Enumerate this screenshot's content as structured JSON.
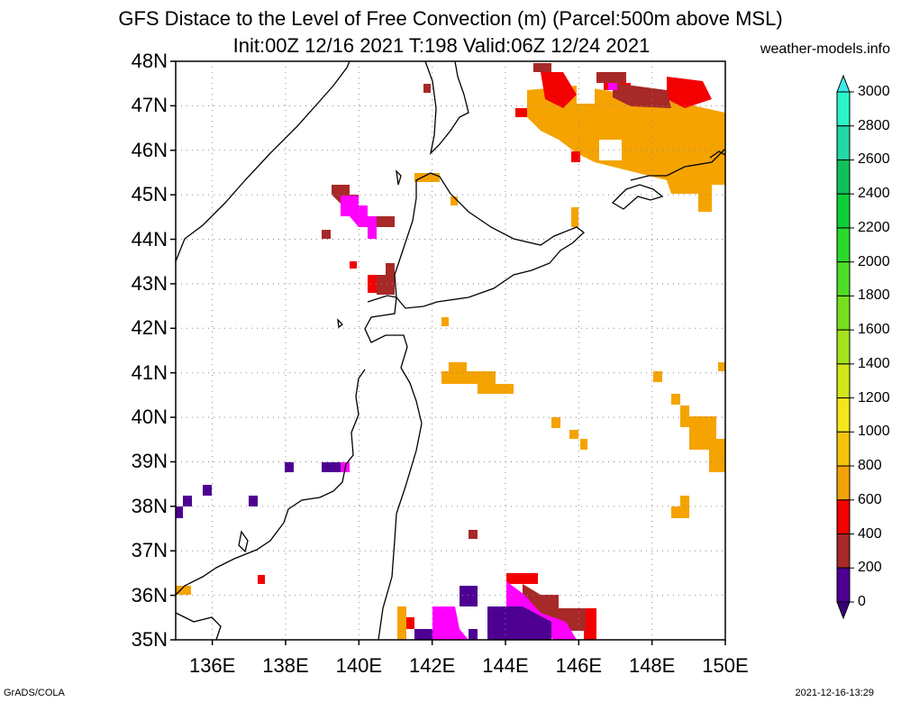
{
  "title_line1": "GFS Distace to the Level of Free Convection (m) (Parcel:500m above MSL)",
  "title_line2": "Init:00Z 12/16 2021 T:198 Valid:06Z 12/24 2021",
  "site": "weather-models.info",
  "footer_left": "GrADS/COLA",
  "footer_right": "2021-12-16-13:29",
  "lat_labels": [
    "48N",
    "47N",
    "46N",
    "45N",
    "44N",
    "43N",
    "42N",
    "41N",
    "40N",
    "39N",
    "38N",
    "37N",
    "36N",
    "35N"
  ],
  "lon_labels": [
    "136E",
    "138E",
    "140E",
    "142E",
    "144E",
    "146E",
    "148E",
    "150E"
  ],
  "colorbar": {
    "labels": [
      "3000",
      "2800",
      "2600",
      "2400",
      "2200",
      "2000",
      "1800",
      "1600",
      "1400",
      "1200",
      "1000",
      "800",
      "600",
      "400",
      "200",
      "0"
    ],
    "colors": [
      "#2af5c9",
      "#20d8a8",
      "#0fc15a",
      "#0ccf3a",
      "#29d92a",
      "#4ddd24",
      "#76e01f",
      "#a6e31c",
      "#d2e61a",
      "#f3e61a",
      "#f6c40c",
      "#f3a20a",
      "#f30000",
      "#a72928",
      "#ff00ff",
      "#4e0092"
    ],
    "top_color": "#40e8e8",
    "bottom_color": "#3a0078"
  },
  "legend_colors": {
    "orange": "#f5a300",
    "red": "#f30000",
    "brown": "#a72928",
    "magenta": "#ff00ff",
    "purple": "#4e0092",
    "yellow": "#f7c402"
  }
}
